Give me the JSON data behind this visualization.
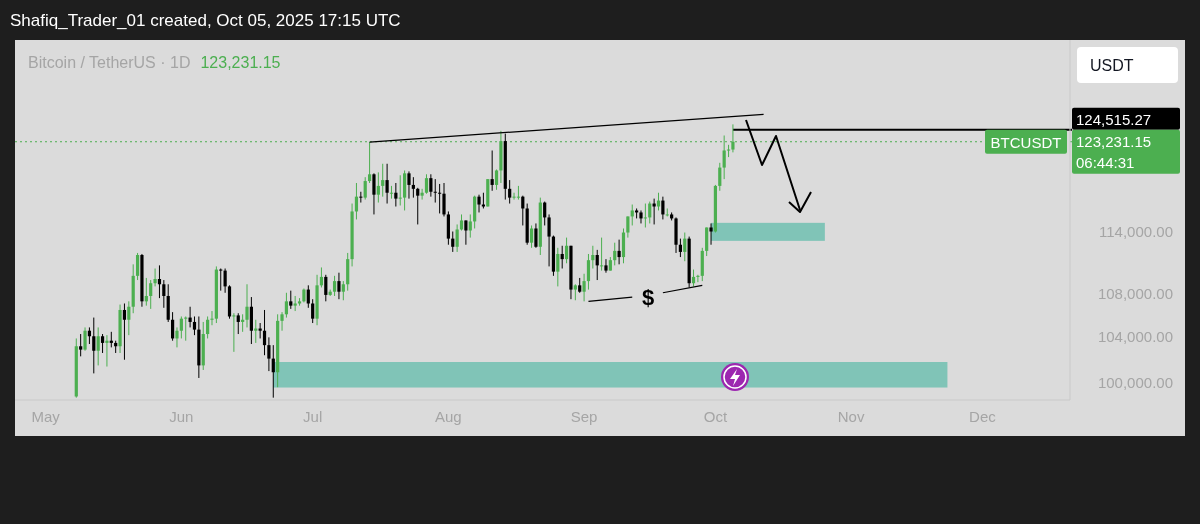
{
  "chart_data": {
    "type": "candlestick",
    "title": "Bitcoin / TetherUS · 1D",
    "subtitle": "123,231.15",
    "annotations": [
      "Shafiq_Trader_01 created, Oct 05, 2025 17:15 UTC",
      "USDT",
      "BTCUSDT",
      "06:44:31",
      "$"
    ],
    "colors": [
      "#4caf50",
      "#000000",
      "#4caf50",
      "#000000",
      "#000000",
      "#4caf50",
      "#000000",
      "#4caf50",
      "#000000",
      "#000000",
      "#4caf50",
      "#000000",
      "#4caf50",
      "#4caf50",
      "#4caf50",
      "#000000",
      "#4caf50",
      "#4caf50",
      "#4caf50",
      "#000000",
      "#000000",
      "#000000",
      "#000000",
      "#4caf50",
      "#4caf50",
      "#4caf50",
      "#000000",
      "#000000",
      "#000000",
      "#4caf50",
      "#4caf50",
      "#4caf50",
      "#4caf50",
      "#000000",
      "#000000",
      "#000000",
      "#4caf50",
      "#000000",
      "#4caf50",
      "#4caf50",
      "#000000",
      "#4caf50",
      "#000000",
      "#000000",
      "#000000",
      "#000000",
      "#4caf50",
      "#4caf50",
      "#4caf50",
      "#000000",
      "#4caf50",
      "#4caf50",
      "#4caf50",
      "#000000",
      "#000000",
      "#4caf50",
      "#4caf50",
      "#000000",
      "#4caf50",
      "#4caf50",
      "#000000",
      "#4caf50",
      "#4caf50",
      "#4caf50",
      "#4caf50",
      "#000000",
      "#4caf50",
      "#4caf50",
      "#000000",
      "#4caf50",
      "#4caf50",
      "#000000",
      "#4caf50",
      "#000000",
      "#4caf50",
      "#4caf50",
      "#000000",
      "#000000",
      "#000000",
      "#4caf50",
      "#4caf50",
      "#000000",
      "#000000",
      "#000000",
      "#000000",
      "#000000",
      "#000000",
      "#4caf50",
      "#4caf50",
      "#000000",
      "#4caf50",
      "#4caf50",
      "#000000",
      "#000000",
      "#4caf50",
      "#000000",
      "#4caf50",
      "#4caf50",
      "#000000",
      "#000000",
      "#4caf50",
      "#4caf50",
      "#000000",
      "#000000",
      "#4caf50",
      "#000000",
      "#4caf50",
      "#000000",
      "#000000",
      "#000000",
      "#4caf50",
      "#000000",
      "#4caf50",
      "#000000",
      "#4caf50",
      "#000000",
      "#4caf50",
      "#4caf50",
      "#4caf50",
      "#000000",
      "#4caf50",
      "#000000",
      "#4caf50",
      "#4caf50",
      "#000000",
      "#4caf50",
      "#4caf50",
      "#4caf50",
      "#000000",
      "#000000",
      "#4caf50",
      "#4caf50",
      "#000000",
      "#4caf50",
      "#000000",
      "#4caf50",
      "#000000",
      "#000000",
      "#000000",
      "#4caf50",
      "#000000",
      "#4caf50",
      "#4caf50",
      "#4caf50",
      "#4caf50",
      "#000000",
      "#4caf50",
      "#4caf50",
      "#4caf50",
      "#4caf50",
      "#4caf50"
    ],
    "x": [
      "2025-05-08",
      "2025-05-09",
      "2025-05-10",
      "2025-05-11",
      "2025-05-12",
      "2025-05-13",
      "2025-05-14",
      "2025-05-15",
      "2025-05-16",
      "2025-05-17",
      "2025-05-18",
      "2025-05-19",
      "2025-05-20",
      "2025-05-21",
      "2025-05-22",
      "2025-05-23",
      "2025-05-24",
      "2025-05-25",
      "2025-05-26",
      "2025-05-27",
      "2025-05-28",
      "2025-05-29",
      "2025-05-30",
      "2025-05-31",
      "2025-06-01",
      "2025-06-02",
      "2025-06-03",
      "2025-06-04",
      "2025-06-05",
      "2025-06-06",
      "2025-06-07",
      "2025-06-08",
      "2025-06-09",
      "2025-06-10",
      "2025-06-11",
      "2025-06-12",
      "2025-06-13",
      "2025-06-14",
      "2025-06-15",
      "2025-06-16",
      "2025-06-17",
      "2025-06-18",
      "2025-06-19",
      "2025-06-20",
      "2025-06-21",
      "2025-06-22",
      "2025-06-23",
      "2025-06-24",
      "2025-06-25",
      "2025-06-26",
      "2025-06-27",
      "2025-06-28",
      "2025-06-29",
      "2025-06-30",
      "2025-07-01",
      "2025-07-02",
      "2025-07-03",
      "2025-07-04",
      "2025-07-05",
      "2025-07-06",
      "2025-07-07",
      "2025-07-08",
      "2025-07-09",
      "2025-07-10",
      "2025-07-11",
      "2025-07-12",
      "2025-07-13",
      "2025-07-14",
      "2025-07-15",
      "2025-07-16",
      "2025-07-17",
      "2025-07-18",
      "2025-07-19",
      "2025-07-20",
      "2025-07-21",
      "2025-07-22",
      "2025-07-23",
      "2025-07-24",
      "2025-07-25",
      "2025-07-26",
      "2025-07-27",
      "2025-07-28",
      "2025-07-29",
      "2025-07-30",
      "2025-07-31",
      "2025-08-01",
      "2025-08-02",
      "2025-08-03",
      "2025-08-04",
      "2025-08-05",
      "2025-08-06",
      "2025-08-07",
      "2025-08-08",
      "2025-08-09",
      "2025-08-10",
      "2025-08-11",
      "2025-08-12",
      "2025-08-13",
      "2025-08-14",
      "2025-08-15",
      "2025-08-16",
      "2025-08-17",
      "2025-08-18",
      "2025-08-19",
      "2025-08-20",
      "2025-08-21",
      "2025-08-22",
      "2025-08-23",
      "2025-08-24",
      "2025-08-25",
      "2025-08-26",
      "2025-08-27",
      "2025-08-28",
      "2025-08-29",
      "2025-08-30",
      "2025-08-31",
      "2025-09-01",
      "2025-09-02",
      "2025-09-03",
      "2025-09-04",
      "2025-09-05",
      "2025-09-06",
      "2025-09-07",
      "2025-09-08",
      "2025-09-09",
      "2025-09-10",
      "2025-09-11",
      "2025-09-12",
      "2025-09-13",
      "2025-09-14",
      "2025-09-15",
      "2025-09-16",
      "2025-09-17",
      "2025-09-18",
      "2025-09-19",
      "2025-09-20",
      "2025-09-21",
      "2025-09-22",
      "2025-09-23",
      "2025-09-24",
      "2025-09-25",
      "2025-09-26",
      "2025-09-27",
      "2025-09-28",
      "2025-09-29",
      "2025-09-30",
      "2025-10-01",
      "2025-10-02",
      "2025-10-03",
      "2025-10-04",
      "2025-10-05"
    ],
    "ohlc": [
      [
        98800,
        103900,
        98700,
        103200
      ],
      [
        103200,
        104300,
        102300,
        102900
      ],
      [
        102900,
        104900,
        102800,
        104600
      ],
      [
        104600,
        104900,
        103400,
        104100
      ],
      [
        104100,
        105800,
        100800,
        102800
      ],
      [
        102800,
        104900,
        101500,
        104100
      ],
      [
        104100,
        104300,
        102600,
        103500
      ],
      [
        103500,
        104200,
        101400,
        103700
      ],
      [
        103700,
        104500,
        103100,
        103500
      ],
      [
        103500,
        103700,
        102600,
        103200
      ],
      [
        103200,
        107000,
        102600,
        106500
      ],
      [
        106500,
        107100,
        102000,
        105600
      ],
      [
        105600,
        107300,
        104200,
        106800
      ],
      [
        106800,
        110800,
        106200,
        109700
      ],
      [
        109700,
        111900,
        109300,
        111700
      ],
      [
        111700,
        111800,
        106800,
        107300
      ],
      [
        107300,
        109500,
        106900,
        107800
      ],
      [
        107800,
        109300,
        106600,
        109000
      ],
      [
        109000,
        110400,
        108700,
        109400
      ],
      [
        109400,
        110700,
        107600,
        108900
      ],
      [
        108900,
        109300,
        106700,
        107800
      ],
      [
        107800,
        108900,
        105400,
        105600
      ],
      [
        105600,
        106300,
        103700,
        103900
      ],
      [
        103900,
        104900,
        103100,
        104600
      ],
      [
        104600,
        105900,
        103900,
        105700
      ],
      [
        105700,
        105900,
        103700,
        105800
      ],
      [
        105800,
        106800,
        104900,
        105400
      ],
      [
        105400,
        105900,
        104200,
        104700
      ],
      [
        104700,
        105900,
        100400,
        101500
      ],
      [
        101500,
        105400,
        101100,
        104300
      ],
      [
        104300,
        105900,
        103900,
        105600
      ],
      [
        105600,
        106400,
        105100,
        105700
      ],
      [
        105700,
        110600,
        105300,
        110300
      ],
      [
        110300,
        110400,
        108300,
        110200
      ],
      [
        110200,
        110400,
        108100,
        108700
      ],
      [
        108700,
        108800,
        105700,
        105900
      ],
      [
        105900,
        106200,
        102700,
        106000
      ],
      [
        106000,
        106200,
        104300,
        105400
      ],
      [
        105400,
        106100,
        104500,
        105600
      ],
      [
        105600,
        108900,
        104900,
        106800
      ],
      [
        106800,
        107700,
        103400,
        104600
      ],
      [
        104600,
        105600,
        103500,
        104800
      ],
      [
        104800,
        105300,
        103900,
        104600
      ],
      [
        104600,
        106500,
        102400,
        103300
      ],
      [
        103300,
        104000,
        101000,
        102100
      ],
      [
        102100,
        103300,
        98700,
        100900
      ],
      [
        100900,
        106100,
        99600,
        105500
      ],
      [
        105500,
        106300,
        104600,
        106100
      ],
      [
        106100,
        108100,
        105800,
        107300
      ],
      [
        107300,
        108300,
        106600,
        106900
      ],
      [
        106900,
        107800,
        106400,
        107100
      ],
      [
        107100,
        107600,
        106900,
        107300
      ],
      [
        107300,
        108500,
        107200,
        108400
      ],
      [
        108400,
        108800,
        106700,
        107100
      ],
      [
        107100,
        107500,
        105300,
        105700
      ],
      [
        105700,
        109800,
        105100,
        108800
      ],
      [
        108800,
        110500,
        108600,
        109600
      ],
      [
        109600,
        109800,
        107300,
        107900
      ],
      [
        107900,
        108400,
        107800,
        108200
      ],
      [
        108200,
        109700,
        107800,
        109200
      ],
      [
        109200,
        110000,
        107500,
        108200
      ],
      [
        108200,
        109200,
        107400,
        108900
      ],
      [
        108900,
        111900,
        108300,
        111300
      ],
      [
        111300,
        116800,
        110600,
        116000
      ],
      [
        116000,
        118900,
        115200,
        117500
      ],
      [
        117500,
        118000,
        116900,
        117400
      ],
      [
        117400,
        119500,
        117200,
        119100
      ],
      [
        119100,
        123200,
        118900,
        119800
      ],
      [
        119800,
        119900,
        115700,
        117700
      ],
      [
        117700,
        120000,
        116900,
        118600
      ],
      [
        118600,
        120900,
        117500,
        119200
      ],
      [
        119200,
        120900,
        116800,
        117900
      ],
      [
        117900,
        118600,
        117300,
        117900
      ],
      [
        117900,
        118900,
        116500,
        117300
      ],
      [
        117300,
        119700,
        116600,
        117400
      ],
      [
        117400,
        120200,
        116100,
        119900
      ],
      [
        119900,
        120100,
        117300,
        118700
      ],
      [
        118700,
        119500,
        117400,
        118300
      ],
      [
        118300,
        118400,
        114700,
        117600
      ],
      [
        117600,
        118300,
        117200,
        117900
      ],
      [
        117900,
        119800,
        117800,
        119400
      ],
      [
        119400,
        119800,
        117500,
        118000
      ],
      [
        118000,
        119300,
        116900,
        117900
      ],
      [
        117900,
        118800,
        115800,
        117800
      ],
      [
        117800,
        118900,
        115500,
        115700
      ],
      [
        115700,
        116000,
        112700,
        113300
      ],
      [
        113300,
        114000,
        112000,
        112500
      ],
      [
        112500,
        114700,
        112000,
        114200
      ],
      [
        114200,
        115700,
        114100,
        115100
      ],
      [
        115100,
        115100,
        112700,
        114100
      ],
      [
        114100,
        115700,
        113400,
        115000
      ],
      [
        115000,
        117600,
        114300,
        117500
      ],
      [
        117500,
        117700,
        115900,
        116700
      ],
      [
        116700,
        117900,
        116300,
        116500
      ],
      [
        116500,
        119300,
        116500,
        119300
      ],
      [
        119300,
        122300,
        118100,
        118700
      ],
      [
        118700,
        120300,
        118200,
        120200
      ],
      [
        120200,
        124400,
        118900,
        123300
      ],
      [
        123300,
        124100,
        117200,
        118300
      ],
      [
        118300,
        119200,
        116800,
        117400
      ],
      [
        117400,
        117900,
        117200,
        117500
      ],
      [
        117500,
        118600,
        117200,
        117500
      ],
      [
        117500,
        117600,
        114600,
        116300
      ],
      [
        116300,
        116800,
        112700,
        112900
      ],
      [
        112900,
        114600,
        112400,
        114300
      ],
      [
        114300,
        114800,
        112400,
        112500
      ],
      [
        112500,
        117400,
        111700,
        116900
      ],
      [
        116900,
        117000,
        114600,
        115400
      ],
      [
        115400,
        115700,
        110600,
        113500
      ],
      [
        113500,
        113600,
        109700,
        110100
      ],
      [
        110100,
        112400,
        108700,
        111800
      ],
      [
        111800,
        112600,
        110400,
        111300
      ],
      [
        111300,
        113400,
        110900,
        112600
      ],
      [
        112600,
        112600,
        107500,
        108400
      ],
      [
        108400,
        108900,
        107400,
        108800
      ],
      [
        108800,
        109500,
        108100,
        108200
      ],
      [
        108200,
        109900,
        107300,
        109200
      ],
      [
        109200,
        111800,
        108400,
        111200
      ],
      [
        111200,
        112600,
        110400,
        111700
      ],
      [
        111700,
        112200,
        109300,
        110700
      ],
      [
        110700,
        113400,
        110200,
        110700
      ],
      [
        110700,
        111300,
        110000,
        110200
      ],
      [
        110200,
        111500,
        110200,
        111200
      ],
      [
        111200,
        112900,
        110700,
        112100
      ],
      [
        112100,
        113200,
        110800,
        111500
      ],
      [
        111500,
        114300,
        110900,
        113900
      ],
      [
        113900,
        115500,
        113400,
        115500
      ],
      [
        115500,
        116700,
        114600,
        116100
      ],
      [
        116100,
        116300,
        115300,
        115900
      ],
      [
        115900,
        116100,
        114800,
        115300
      ],
      [
        115300,
        116800,
        114400,
        115400
      ],
      [
        115400,
        117000,
        114800,
        116800
      ],
      [
        116800,
        117300,
        114700,
        116500
      ],
      [
        116500,
        117900,
        116100,
        117100
      ],
      [
        117100,
        117500,
        115200,
        115700
      ],
      [
        115700,
        116300,
        115500,
        115700
      ],
      [
        115700,
        115900,
        115100,
        115300
      ],
      [
        115300,
        115400,
        111900,
        112700
      ],
      [
        112700,
        113300,
        111500,
        112000
      ],
      [
        112000,
        113900,
        111100,
        113300
      ],
      [
        113300,
        113500,
        108600,
        109000
      ],
      [
        109000,
        110300,
        108700,
        109600
      ],
      [
        109600,
        109800,
        109100,
        109700
      ],
      [
        109700,
        112400,
        109200,
        112100
      ],
      [
        112100,
        114400,
        111600,
        114400
      ],
      [
        114400,
        114800,
        112700,
        114000
      ],
      [
        114000,
        118700,
        113900,
        118600
      ],
      [
        118600,
        121000,
        118100,
        120500
      ],
      [
        120500,
        123900,
        119300,
        122300
      ],
      [
        122300,
        122900,
        121600,
        122400
      ],
      [
        122400,
        125100,
        122100,
        123231.15
      ]
    ],
    "series": [
      {
        "type": "line",
        "color": "#000000",
        "x": [
          "2025-07-14",
          "2025-10-12"
        ],
        "values": [
          123200,
          126200
        ]
      },
      {
        "type": "line",
        "color": "#000000",
        "x": [
          "2025-09-02",
          "2025-09-12",
          "2025-09-15",
          "2025-09-19",
          "2025-09-28"
        ],
        "values": [
          107300,
          107700,
          null,
          108100,
          108800
        ]
      }
    ],
    "ref_lines": [
      {
        "axis": "y",
        "value": 124515.27,
        "label": "124,515.27",
        "color": "#000000",
        "line_style": "solid"
      },
      {
        "axis": "y",
        "value": 123231.15,
        "label": "123,231.15",
        "color": "#4caf50",
        "line_style": "dotted"
      }
    ],
    "bands": [
      {
        "axis": "y",
        "from": 99570,
        "to": 101800,
        "color": "#80c4b7"
      },
      {
        "axis": "y",
        "from": 113080,
        "to": 114860,
        "color": "#80c4b7"
      }
    ],
    "xlim": [
      "2025-04-24",
      "2025-12-21"
    ],
    "xticks": [
      {
        "value": "2025-05-01",
        "label": "May"
      },
      {
        "value": "2025-06-01",
        "label": "Jun"
      },
      {
        "value": "2025-07-01",
        "label": "Jul"
      },
      {
        "value": "2025-08-01",
        "label": "Aug"
      },
      {
        "value": "2025-09-01",
        "label": "Sep"
      },
      {
        "value": "2025-10-01",
        "label": "Oct"
      },
      {
        "value": "2025-11-01",
        "label": "Nov"
      },
      {
        "value": "2025-12-01",
        "label": "Dec"
      }
    ],
    "ylim": [
      98500,
      134600
    ],
    "yticks": [
      {
        "value": 100000,
        "label": "100,000.00"
      },
      {
        "value": 104000,
        "label": "104,000.00"
      },
      {
        "value": 108000,
        "label": "108,000.00"
      },
      {
        "value": 114000,
        "label": "114,000.00"
      }
    ],
    "log": "y",
    "grid": false
  }
}
